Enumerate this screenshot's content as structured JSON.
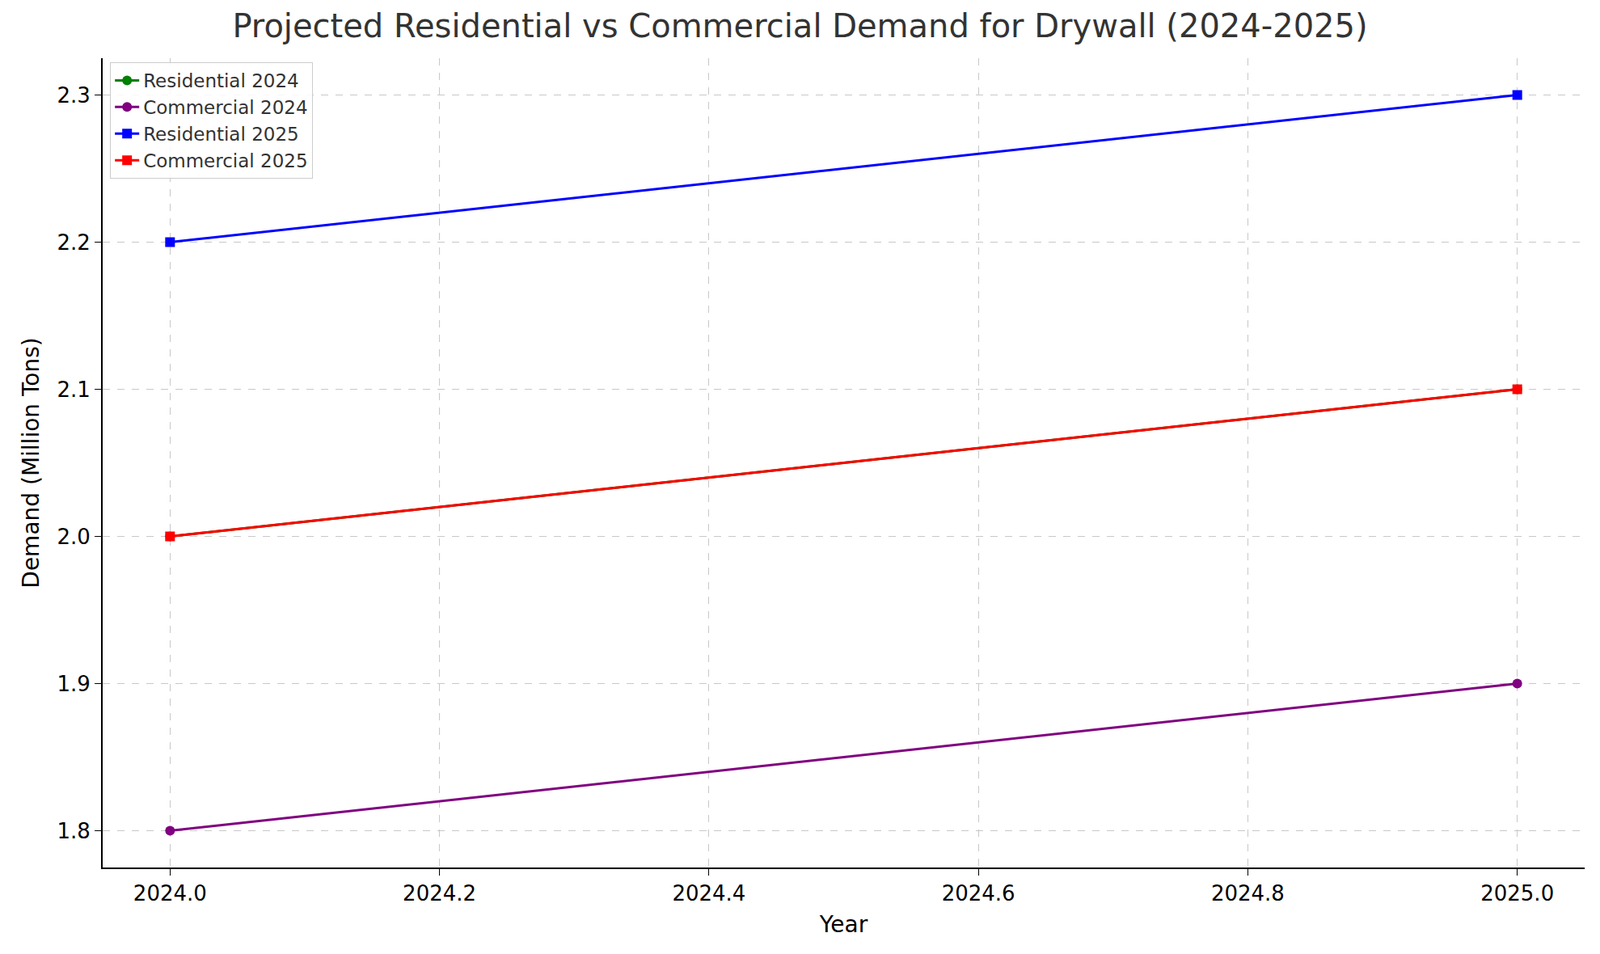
{
  "chart_data": {
    "type": "line",
    "title": "Projected Residential vs Commercial Demand for Drywall (2024-2025)",
    "x_label": "Year",
    "y_label": "Demand (Million Tons)",
    "x": [
      2024,
      2025
    ],
    "series": [
      {
        "name": "Residential 2024",
        "color": "#008000",
        "marker": "circle",
        "values": [
          2.0,
          2.1
        ]
      },
      {
        "name": "Commercial 2024",
        "color": "#800080",
        "marker": "circle",
        "values": [
          1.8,
          1.9
        ]
      },
      {
        "name": "Residential 2025",
        "color": "#0000ff",
        "marker": "square",
        "values": [
          2.2,
          2.3
        ]
      },
      {
        "name": "Commercial 2025",
        "color": "#ff0000",
        "marker": "square",
        "values": [
          2.0,
          2.1
        ]
      }
    ],
    "xlim": [
      2023.95,
      2025.05
    ],
    "xticks": [
      {
        "value": 2024,
        "label": "2024.0"
      },
      {
        "value": 2024.2,
        "label": "2024.2"
      },
      {
        "value": 2024.4,
        "label": "2024.4"
      },
      {
        "value": 2024.6,
        "label": "2024.6"
      },
      {
        "value": 2024.8,
        "label": "2024.8"
      },
      {
        "value": 2025,
        "label": "2025.0"
      }
    ],
    "ylim": [
      1.775,
      2.325
    ],
    "yticks": [
      1.8,
      1.9,
      {
        "value": 2,
        "label": "2.0"
      },
      2.1,
      2.2,
      2.3
    ],
    "grid": true,
    "legend": "upper left"
  }
}
